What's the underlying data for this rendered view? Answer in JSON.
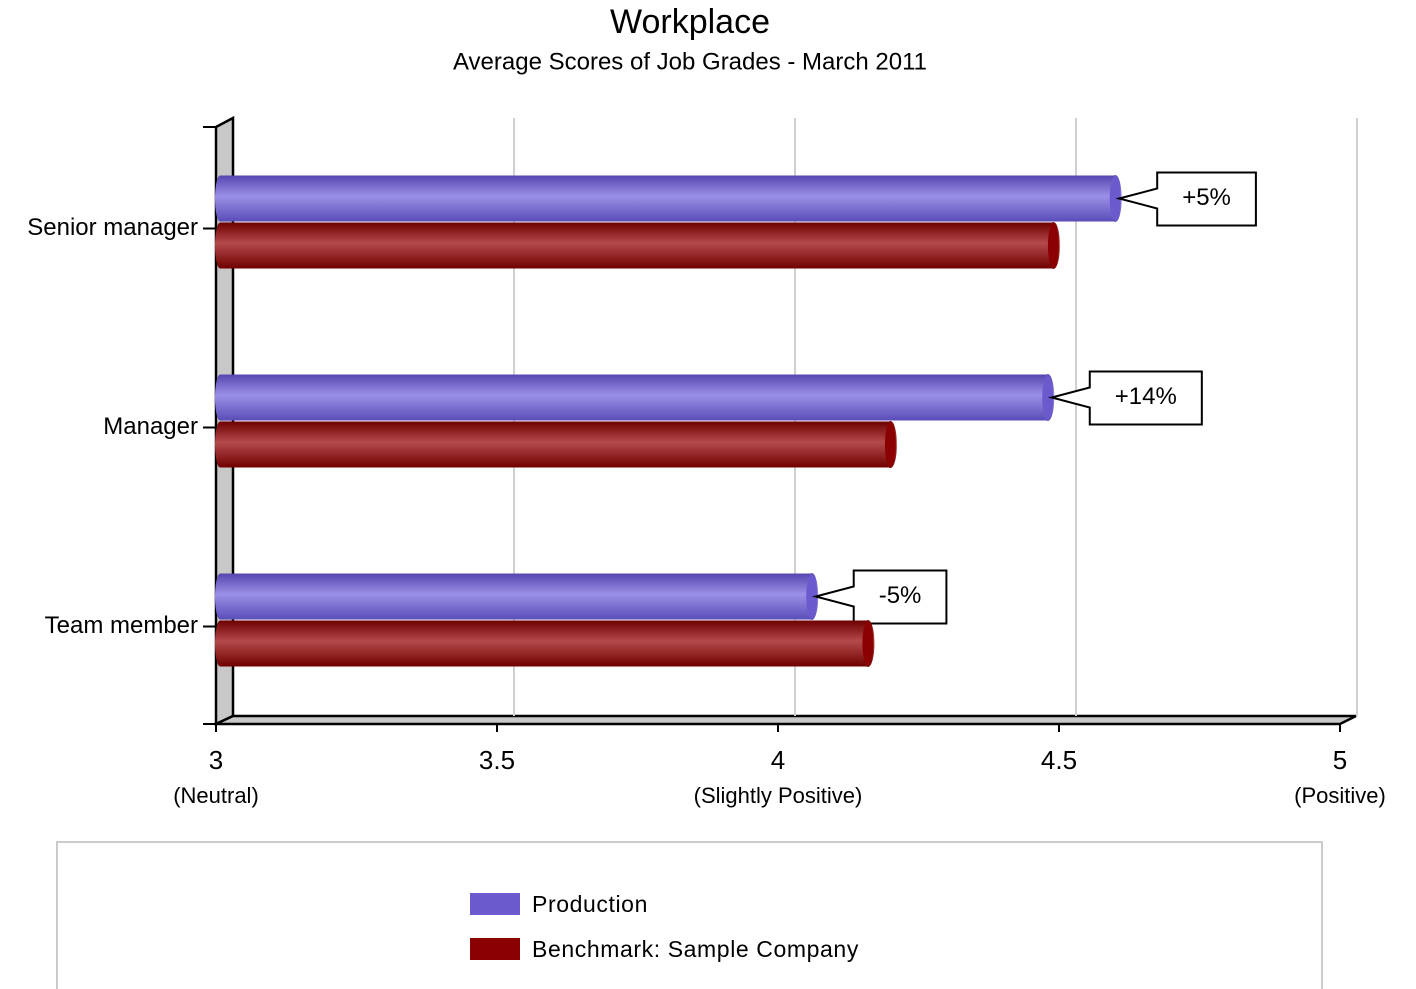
{
  "chart_data": {
    "type": "hbar",
    "title": "Workplace",
    "subtitle": "Average Scores of Job Grades - March 2011",
    "categories": [
      "Senior manager",
      "Manager",
      "Team member"
    ],
    "series": [
      {
        "name": "Production",
        "color": "#6a5acd",
        "values": [
          4.6,
          4.48,
          4.06
        ]
      },
      {
        "name": "Benchmark: Sample Company",
        "color": "#8b0000",
        "values": [
          4.49,
          4.2,
          4.16
        ]
      }
    ],
    "annotations": [
      "+5%",
      "+14%",
      "-5%"
    ],
    "xlim": [
      3,
      5
    ],
    "xticks": [
      3,
      3.5,
      4,
      4.5,
      5
    ],
    "xtick_descriptions": [
      {
        "value": 3,
        "label": "(Neutral)"
      },
      {
        "value": 4,
        "label": "(Slightly Positive)"
      },
      {
        "value": 5,
        "label": "(Positive)"
      }
    ],
    "grid": true,
    "legend": "bottom"
  }
}
